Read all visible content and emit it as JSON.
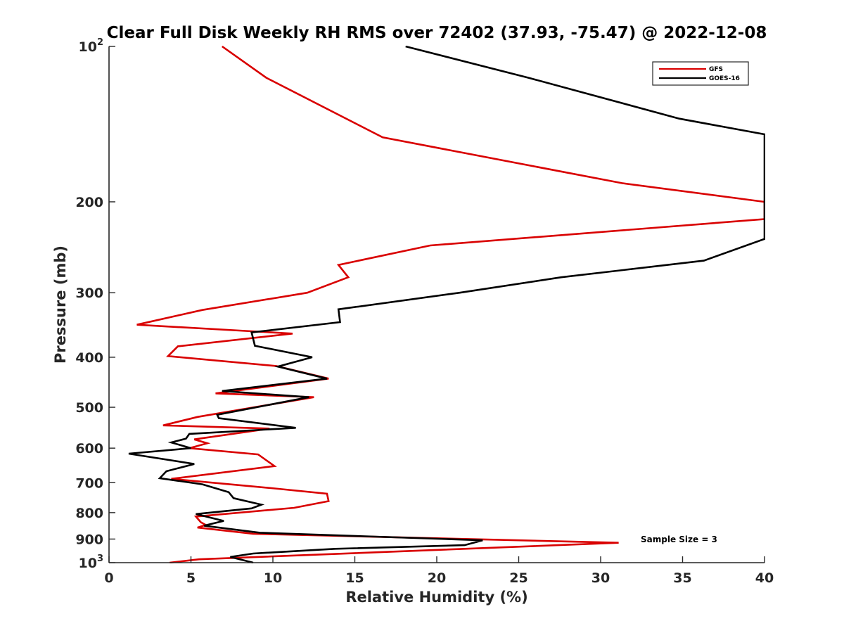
{
  "chart_data": {
    "type": "line",
    "title": "Clear Full Disk Weekly RH RMS over 72402 (37.93, -75.47) @ 2022-12-08",
    "xlabel": "Relative Humidity (%)",
    "ylabel": "Pressure (mb)",
    "xlim": [
      0,
      40
    ],
    "ylim": [
      100,
      1000
    ],
    "yscale": "log",
    "y_reversed": true,
    "grid": false,
    "legend_position": "top-right",
    "x_ticks": [
      0,
      5,
      10,
      15,
      20,
      25,
      30,
      35,
      40
    ],
    "x_tick_labels": [
      "0",
      "5",
      "10",
      "15",
      "20",
      "25",
      "30",
      "35",
      "40"
    ],
    "y_ticks": [
      100,
      200,
      300,
      400,
      500,
      600,
      700,
      800,
      900,
      1000
    ],
    "y_tick_labels": [
      {
        "base": "10",
        "sup": "2"
      },
      {
        "base": "200",
        "sup": ""
      },
      {
        "base": "300",
        "sup": ""
      },
      {
        "base": "400",
        "sup": ""
      },
      {
        "base": "500",
        "sup": ""
      },
      {
        "base": "600",
        "sup": ""
      },
      {
        "base": "700",
        "sup": ""
      },
      {
        "base": "800",
        "sup": ""
      },
      {
        "base": "900",
        "sup": ""
      },
      {
        "base": "10",
        "sup": "3"
      }
    ],
    "annotation": "Sample Size = 3",
    "series": [
      {
        "name": "GFS",
        "color": "#d90000",
        "points": [
          [
            6.9,
            100
          ],
          [
            9.6,
            115
          ],
          [
            16.7,
            150
          ],
          [
            31.3,
            184
          ],
          [
            40,
            200
          ],
          [
            40,
            216
          ],
          [
            19.6,
            243
          ],
          [
            14,
            265
          ],
          [
            14.6,
            280
          ],
          [
            12.1,
            300
          ],
          [
            5.7,
            324
          ],
          [
            1.7,
            346
          ],
          [
            11.2,
            360
          ],
          [
            4.2,
            381
          ],
          [
            3.6,
            398
          ],
          [
            10.2,
            416
          ],
          [
            13.4,
            440
          ],
          [
            6.5,
            470
          ],
          [
            12.5,
            478
          ],
          [
            5.4,
            522
          ],
          [
            3.3,
            542
          ],
          [
            9.8,
            550
          ],
          [
            5.2,
            577
          ],
          [
            6,
            587
          ],
          [
            4.9,
            600
          ],
          [
            9.1,
            617
          ],
          [
            10.1,
            650
          ],
          [
            3.8,
            688
          ],
          [
            9.9,
            717
          ],
          [
            13.3,
            735
          ],
          [
            13.4,
            760
          ],
          [
            11.3,
            783
          ],
          [
            5.3,
            814
          ],
          [
            5.6,
            835
          ],
          [
            5.9,
            845
          ],
          [
            5.4,
            855
          ],
          [
            8.8,
            879
          ],
          [
            31.1,
            915
          ],
          [
            5.5,
            985
          ],
          [
            3.7,
            1000
          ]
        ]
      },
      {
        "name": "GOES-16",
        "color": "#000000",
        "points": [
          [
            18.1,
            100
          ],
          [
            25.6,
            115
          ],
          [
            34.8,
            138
          ],
          [
            40,
            148
          ],
          [
            40,
            236
          ],
          [
            36.3,
            260
          ],
          [
            27.6,
            280
          ],
          [
            21.4,
            300
          ],
          [
            14,
            323
          ],
          [
            14.1,
            342
          ],
          [
            8.7,
            358
          ],
          [
            8.9,
            380
          ],
          [
            12.4,
            400
          ],
          [
            10.3,
            417
          ],
          [
            13.3,
            440
          ],
          [
            6.9,
            465
          ],
          [
            12.2,
            478
          ],
          [
            6.6,
            517
          ],
          [
            6.7,
            525
          ],
          [
            11.4,
            548
          ],
          [
            4.9,
            563
          ],
          [
            4.7,
            575
          ],
          [
            3.8,
            585
          ],
          [
            5,
            600
          ],
          [
            1.2,
            615
          ],
          [
            5.2,
            644
          ],
          [
            3.5,
            665
          ],
          [
            3.1,
            686
          ],
          [
            5.7,
            705
          ],
          [
            7.3,
            730
          ],
          [
            7.6,
            750
          ],
          [
            9.3,
            772
          ],
          [
            8.7,
            785
          ],
          [
            5.3,
            805
          ],
          [
            7,
            830
          ],
          [
            5.8,
            848
          ],
          [
            9.2,
            875
          ],
          [
            22.8,
            905
          ],
          [
            21.7,
            925
          ],
          [
            13.8,
            940
          ],
          [
            8.8,
            960
          ],
          [
            7.4,
            975
          ],
          [
            8.8,
            1000
          ]
        ]
      }
    ]
  }
}
